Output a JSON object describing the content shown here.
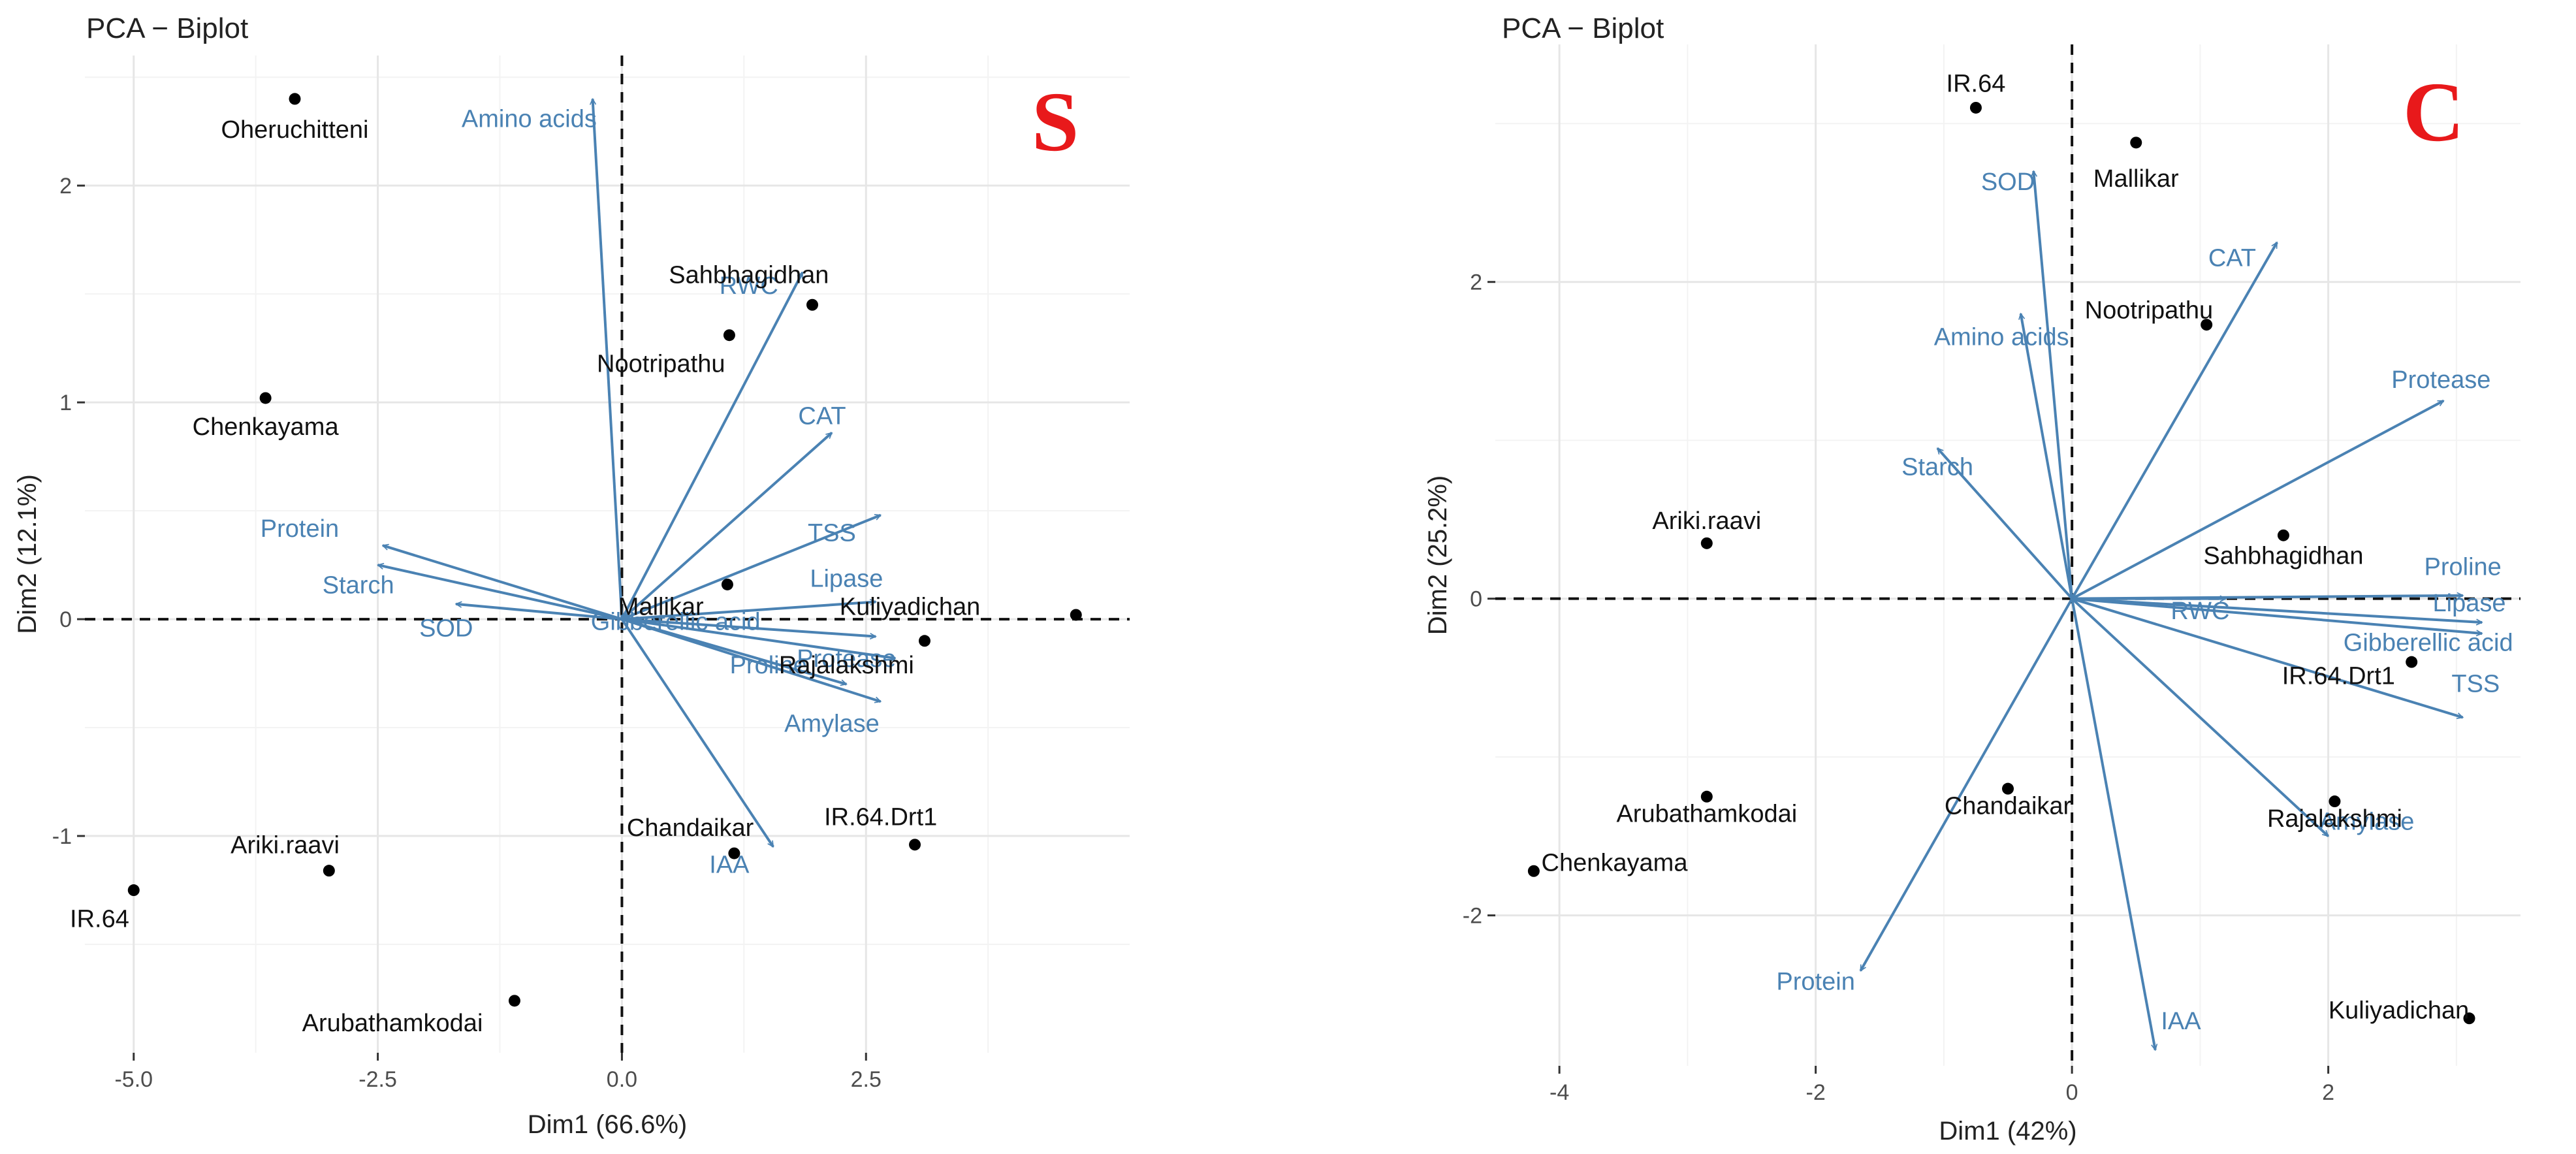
{
  "chart_data": [
    {
      "type": "scatter",
      "id": "S",
      "title": "PCA − Biplot",
      "badge": "S",
      "xlabel": "Dim1 (66.6%)",
      "ylabel": "Dim2 (12.1%)",
      "xlim": [
        -5.5,
        5.2
      ],
      "ylim": [
        -2.0,
        2.6
      ],
      "xticks": [
        -5.0,
        -2.5,
        0.0,
        2.5
      ],
      "xtick_labels": [
        "-5.0",
        "-2.5",
        "0.0",
        "2.5"
      ],
      "yticks": [
        -1,
        0,
        1,
        2
      ],
      "ytick_labels": [
        "-1",
        "0",
        "1",
        "2"
      ],
      "points": [
        {
          "name": "Oheruchitteni",
          "x": -3.35,
          "y": 2.4,
          "lx": -3.35,
          "ly": 2.22
        },
        {
          "name": "Chenkayama",
          "x": -3.65,
          "y": 1.02,
          "lx": -3.65,
          "ly": 0.85
        },
        {
          "name": "Sahbhagidhan",
          "x": 1.95,
          "y": 1.45,
          "lx": 1.3,
          "ly": 1.55
        },
        {
          "name": "Nootripathu",
          "x": 1.1,
          "y": 1.31,
          "lx": 0.4,
          "ly": 1.14
        },
        {
          "name": "Mallikar",
          "x": 1.08,
          "y": 0.16,
          "lx": 0.4,
          "ly": 0.02
        },
        {
          "name": "Kuliyadichan",
          "x": 4.65,
          "y": 0.02,
          "lx": 2.95,
          "ly": 0.02
        },
        {
          "name": "Rajalakshmi",
          "x": 3.1,
          "y": -0.1,
          "lx": 2.3,
          "ly": -0.25
        },
        {
          "name": "IR.64.Drt1",
          "x": 3.0,
          "y": -1.04,
          "lx": 2.65,
          "ly": -0.95
        },
        {
          "name": "Chandaikar",
          "x": 1.15,
          "y": -1.08,
          "lx": 0.7,
          "ly": -1.0
        },
        {
          "name": "Ariki.raavi",
          "x": -3.0,
          "y": -1.16,
          "lx": -3.45,
          "ly": -1.08
        },
        {
          "name": "IR.64",
          "x": -5.0,
          "y": -1.25,
          "lx": -5.35,
          "ly": -1.42
        },
        {
          "name": "Arubathamkodai",
          "x": -1.1,
          "y": -1.76,
          "lx": -2.35,
          "ly": -1.9
        }
      ],
      "variables": [
        {
          "name": "Amino acids",
          "x": -0.3,
          "y": 2.4,
          "lx": -0.95,
          "ly": 2.27
        },
        {
          "name": "RWC",
          "x": 1.85,
          "y": 1.6,
          "lx": 1.3,
          "ly": 1.5
        },
        {
          "name": "CAT",
          "x": 2.15,
          "y": 0.86,
          "lx": 2.05,
          "ly": 0.9
        },
        {
          "name": "TSS",
          "x": 2.65,
          "y": 0.48,
          "lx": 2.15,
          "ly": 0.36
        },
        {
          "name": "Lipase",
          "x": 2.6,
          "y": 0.08,
          "lx": 2.3,
          "ly": 0.15
        },
        {
          "name": "Gibberellic acid",
          "x": 2.6,
          "y": -0.08,
          "lx": 0.55,
          "ly": -0.05
        },
        {
          "name": "Protease",
          "x": 2.8,
          "y": -0.18,
          "lx": 2.3,
          "ly": -0.22
        },
        {
          "name": "Proline",
          "x": 2.3,
          "y": -0.3,
          "lx": 1.5,
          "ly": -0.25
        },
        {
          "name": "Amylase",
          "x": 2.65,
          "y": -0.38,
          "lx": 2.15,
          "ly": -0.52
        },
        {
          "name": "IAA",
          "x": 1.55,
          "y": -1.05,
          "lx": 1.1,
          "ly": -1.17
        },
        {
          "name": "Protein",
          "x": -2.45,
          "y": 0.34,
          "lx": -3.3,
          "ly": 0.38
        },
        {
          "name": "Starch",
          "x": -2.5,
          "y": 0.25,
          "lx": -2.7,
          "ly": 0.12
        },
        {
          "name": "SOD",
          "x": -1.7,
          "y": 0.07,
          "lx": -1.8,
          "ly": -0.08
        }
      ]
    },
    {
      "type": "scatter",
      "id": "C",
      "title": "PCA − Biplot",
      "badge": "C",
      "xlabel": "Dim1 (42%)",
      "ylabel": "Dim2 (25.2%)",
      "xlim": [
        -4.5,
        3.5
      ],
      "ylim": [
        -2.95,
        3.5
      ],
      "xticks": [
        -4,
        -2,
        0,
        2
      ],
      "xtick_labels": [
        "-4",
        "-2",
        "0",
        "2"
      ],
      "yticks": [
        -2,
        0,
        2
      ],
      "ytick_labels": [
        "-2",
        "0",
        "2"
      ],
      "points": [
        {
          "name": "IR.64",
          "x": -0.75,
          "y": 3.1,
          "lx": -0.75,
          "ly": 3.2
        },
        {
          "name": "Mallikar",
          "x": 0.5,
          "y": 2.88,
          "lx": 0.5,
          "ly": 2.6
        },
        {
          "name": "Nootripathu",
          "x": 1.05,
          "y": 1.73,
          "lx": 0.6,
          "ly": 1.77
        },
        {
          "name": "Ariki.raavi",
          "x": -2.85,
          "y": 0.35,
          "lx": -2.85,
          "ly": 0.44
        },
        {
          "name": "Sahbhagidhan",
          "x": 1.65,
          "y": 0.4,
          "lx": 1.65,
          "ly": 0.22
        },
        {
          "name": "IR.64.Drt1",
          "x": 2.65,
          "y": -0.4,
          "lx": 2.08,
          "ly": -0.54
        },
        {
          "name": "Chandaikar",
          "x": -0.5,
          "y": -1.2,
          "lx": -0.5,
          "ly": -1.36
        },
        {
          "name": "Arubathamkodai",
          "x": -2.85,
          "y": -1.25,
          "lx": -2.85,
          "ly": -1.41
        },
        {
          "name": "Rajalakshmi",
          "x": 2.05,
          "y": -1.28,
          "lx": 2.05,
          "ly": -1.44
        },
        {
          "name": "Chenkayama",
          "x": -4.2,
          "y": -1.72,
          "lx": -3.57,
          "ly": -1.72
        },
        {
          "name": "Kuliyadichan",
          "x": 3.1,
          "y": -2.65,
          "lx": 2.55,
          "ly": -2.65
        }
      ],
      "variables": [
        {
          "name": "SOD",
          "x": -0.3,
          "y": 2.7,
          "lx": -0.5,
          "ly": 2.58
        },
        {
          "name": "CAT",
          "x": 1.6,
          "y": 2.25,
          "lx": 1.25,
          "ly": 2.1
        },
        {
          "name": "Amino acids",
          "x": -0.4,
          "y": 1.8,
          "lx": -0.55,
          "ly": 1.6
        },
        {
          "name": "Protease",
          "x": 2.9,
          "y": 1.25,
          "lx": 2.88,
          "ly": 1.33
        },
        {
          "name": "Starch",
          "x": -1.05,
          "y": 0.95,
          "lx": -1.05,
          "ly": 0.78
        },
        {
          "name": "Proline",
          "x": 3.05,
          "y": 0.02,
          "lx": 3.05,
          "ly": 0.15
        },
        {
          "name": "Lipase",
          "x": 3.2,
          "y": -0.15,
          "lx": 3.1,
          "ly": -0.08
        },
        {
          "name": "RWC",
          "x": 1.2,
          "y": 0.0,
          "lx": 1.0,
          "ly": -0.13
        },
        {
          "name": "Gibberellic acid",
          "x": 3.2,
          "y": -0.22,
          "lx": 2.78,
          "ly": -0.33
        },
        {
          "name": "TSS",
          "x": 3.05,
          "y": -0.75,
          "lx": 3.15,
          "ly": -0.59
        },
        {
          "name": "Amylase",
          "x": 2.0,
          "y": -1.5,
          "lx": 2.3,
          "ly": -1.46
        },
        {
          "name": "Protein",
          "x": -1.65,
          "y": -2.35,
          "lx": -2.0,
          "ly": -2.47
        },
        {
          "name": "IAA",
          "x": 0.65,
          "y": -2.85,
          "lx": 0.85,
          "ly": -2.72
        }
      ]
    }
  ]
}
